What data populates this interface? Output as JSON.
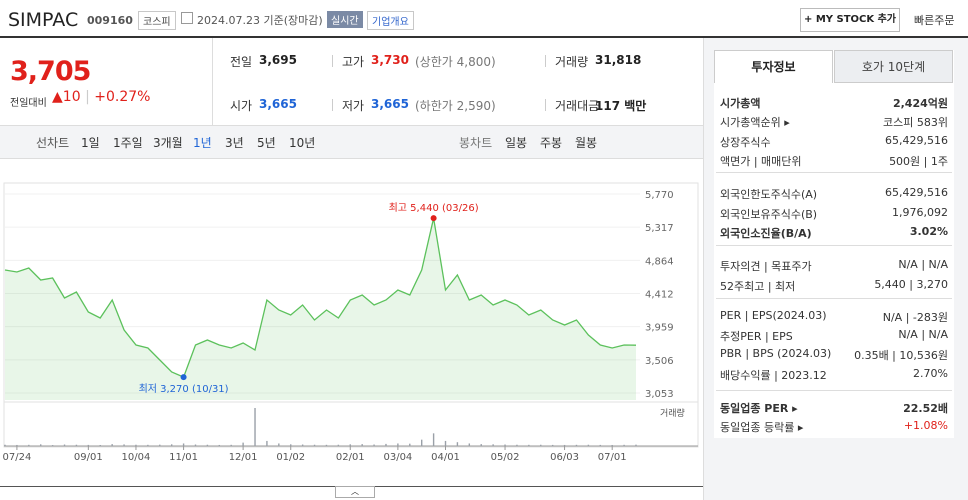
{
  "header": {
    "name": "SIMPAC",
    "code": "009160",
    "market": "코스피",
    "date": "2024.07.23 기준(장마감)",
    "realtime": "실시간",
    "overview": "기업개요",
    "mystock": "+ MY STOCK 추가",
    "quick_order": "빠른주문"
  },
  "quote": {
    "price": "3,705",
    "change_label": "전일대비",
    "change": "10",
    "change_pct": "+0.27%",
    "rows": [
      [
        {
          "label": "전일",
          "value": "3,695",
          "color": "#222222"
        },
        {
          "label": "고가",
          "value": "3,730",
          "note": "(상한가 4,800)",
          "color": "#e0211b"
        },
        {
          "label": "거래량",
          "value": "31,818",
          "color": "#222222"
        }
      ],
      [
        {
          "label": "시가",
          "value": "3,665",
          "color": "#1f64d6"
        },
        {
          "label": "저가",
          "value": "3,665",
          "note": "(하한가 2,590)",
          "color": "#1f64d6"
        },
        {
          "label": "거래대금",
          "value": "117 백만",
          "color": "#222222"
        }
      ]
    ]
  },
  "periods": {
    "line_label": "선차트",
    "line": [
      "1일",
      "1주일",
      "3개월",
      "1년",
      "3년",
      "5년",
      "10년"
    ],
    "selected": 3,
    "candle_label": "봉차트",
    "candle": [
      "일봉",
      "주봉",
      "월봉"
    ]
  },
  "chart": {
    "type": "line",
    "color": "#5cc15c",
    "categories": [
      null,
      "07/24",
      null,
      null,
      null,
      null,
      null,
      "09/01",
      null,
      null,
      null,
      "10/04",
      null,
      null,
      null,
      "11/01",
      null,
      null,
      null,
      null,
      "12/01",
      null,
      null,
      null,
      "01/02",
      null,
      null,
      null,
      null,
      "02/01",
      null,
      null,
      null,
      "03/04",
      null,
      null,
      null,
      "04/01",
      null,
      null,
      null,
      null,
      "05/02",
      null,
      null,
      null,
      null,
      "06/03",
      null,
      null,
      null,
      "07/01",
      null,
      null
    ],
    "values": [
      4732,
      4705,
      4760,
      4596,
      4623,
      4350,
      4432,
      4159,
      4077,
      4323,
      3913,
      3708,
      3667,
      3504,
      3340,
      3270,
      3708,
      3777,
      3708,
      3667,
      3736,
      3640,
      4323,
      4186,
      4118,
      4254,
      4050,
      4186,
      4077,
      4323,
      4391,
      4254,
      4323,
      4459,
      4391,
      4732,
      5440,
      4459,
      4664,
      4323,
      4391,
      4254,
      4323,
      4254,
      4118,
      4186,
      4050,
      3981,
      4050,
      3845,
      3708,
      3667,
      3708,
      3705
    ],
    "ylim": [
      3053,
      5770
    ],
    "yticks": [
      {
        "value": 5770,
        "label": "5,770"
      },
      {
        "value": 5317,
        "label": "5,317"
      },
      {
        "value": 4864,
        "label": "4,864"
      },
      {
        "value": 4412,
        "label": "4,412"
      },
      {
        "value": 3959,
        "label": "3,959"
      },
      {
        "value": 3506,
        "label": "3,506"
      },
      {
        "value": 3053,
        "label": "3,053"
      }
    ],
    "max_label": "최고 5,440 (03/26)",
    "min_label": "최저 3,270 (10/31)",
    "volume_label": "거래량",
    "volume_color": "#9aa0a8",
    "volume": [
      30000,
      25000,
      28000,
      40000,
      22000,
      35000,
      30000,
      26000,
      24000,
      45000,
      38000,
      30000,
      28000,
      32000,
      40000,
      60000,
      35000,
      30000,
      25000,
      28000,
      80000,
      900000,
      120000,
      60000,
      40000,
      35000,
      30000,
      28000,
      30000,
      40000,
      45000,
      35000,
      50000,
      60000,
      55000,
      150000,
      300000,
      120000,
      90000,
      60000,
      45000,
      40000,
      35000,
      30000,
      28000,
      30000,
      26000,
      25000,
      28000,
      30000,
      26000,
      24000,
      28000,
      31818
    ]
  },
  "invest": {
    "tabs": [
      "투자정보",
      "호가 10단계"
    ],
    "groups": [
      [
        {
          "label": "시가총액",
          "value": "2,424억원",
          "bold": true
        },
        {
          "label": "시가총액순위 ▸",
          "value": "코스피 583위"
        },
        {
          "label": "상장주식수",
          "value": "65,429,516"
        },
        {
          "label": "액면가 | 매매단위",
          "value": "500원 | 1주"
        }
      ],
      [
        {
          "label": "외국인한도주식수(A)",
          "value": "65,429,516"
        },
        {
          "label": "외국인보유주식수(B)",
          "value": "1,976,092"
        },
        {
          "label": "외국인소진율(B/A)",
          "value": "3.02%",
          "bold": true
        }
      ],
      [
        {
          "label": "투자의견 | 목표주가",
          "value": "N/A | N/A"
        },
        {
          "label": "52주최고 | 최저",
          "value": "5,440 | 3,270"
        }
      ],
      [
        {
          "label": "PER | EPS(2024.03)",
          "value": "N/A | -283원"
        },
        {
          "label": "추정PER | EPS",
          "value": "N/A | N/A"
        },
        {
          "label": "PBR | BPS (2024.03)",
          "value": "0.35배 | 10,536원"
        },
        {
          "label": "배당수익률 | 2023.12",
          "value": "2.70%"
        }
      ],
      [
        {
          "label": "동일업종 PER ▸",
          "value": "22.52배",
          "bold": true
        },
        {
          "label": "동일업종 등락률 ▸",
          "value": "+1.08%",
          "color": "#e0211b"
        }
      ]
    ]
  }
}
